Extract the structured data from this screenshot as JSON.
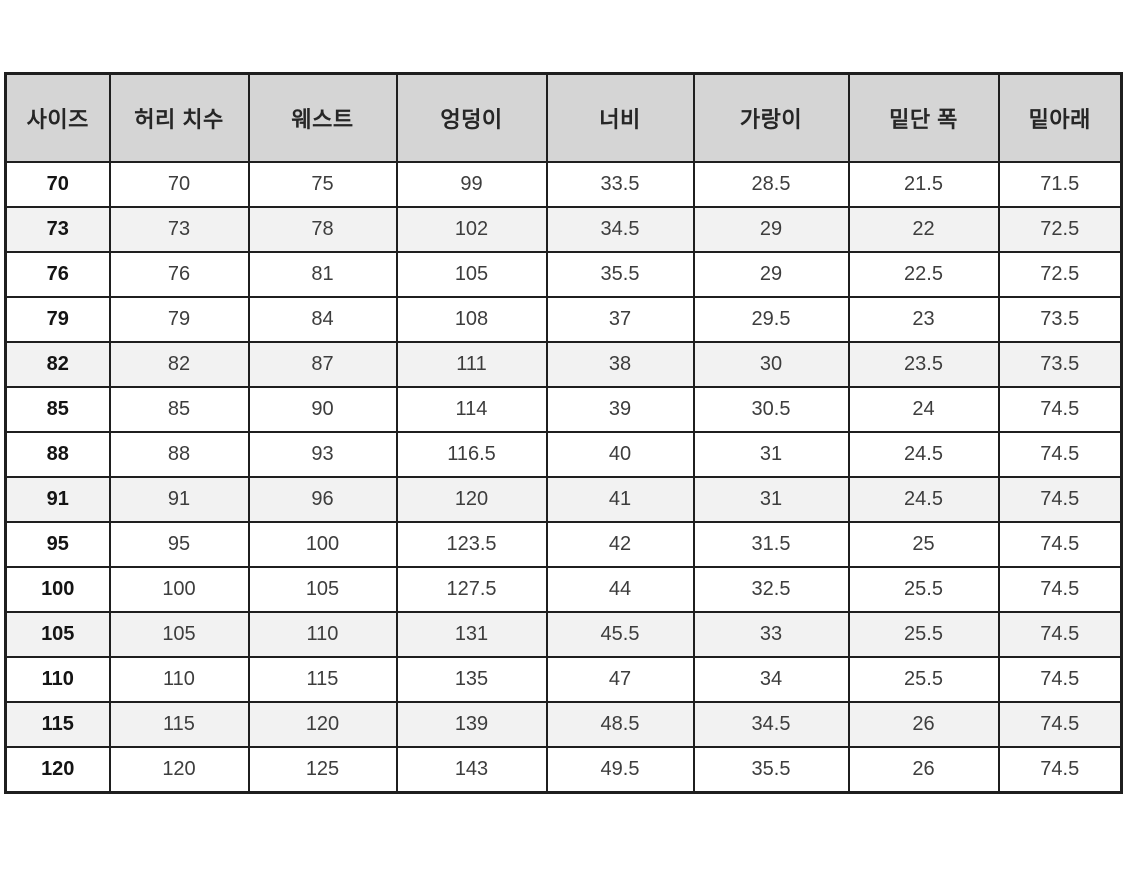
{
  "size_chart": {
    "unit_note": "",
    "colors": {
      "header_bg": "#d5d5d5",
      "row_bg": "#ffffff",
      "row_shaded_bg": "#f2f2f2",
      "border": "#1f1f1f",
      "header_text": "#262626",
      "cell_text": "#3d3d3d",
      "size_col_text": "#141414"
    },
    "headers": [
      "사이즈",
      "허리 치수",
      "웨스트",
      "엉덩이",
      "너비",
      "가랑이",
      "밑단 폭",
      "밑아래"
    ],
    "rows": [
      {
        "shaded": false,
        "cells": [
          "70",
          "70",
          "75",
          "99",
          "33.5",
          "28.5",
          "21.5",
          "71.5"
        ]
      },
      {
        "shaded": true,
        "cells": [
          "73",
          "73",
          "78",
          "102",
          "34.5",
          "29",
          "22",
          "72.5"
        ]
      },
      {
        "shaded": false,
        "cells": [
          "76",
          "76",
          "81",
          "105",
          "35.5",
          "29",
          "22.5",
          "72.5"
        ]
      },
      {
        "shaded": false,
        "cells": [
          "79",
          "79",
          "84",
          "108",
          "37",
          "29.5",
          "23",
          "73.5"
        ]
      },
      {
        "shaded": true,
        "cells": [
          "82",
          "82",
          "87",
          "111",
          "38",
          "30",
          "23.5",
          "73.5"
        ]
      },
      {
        "shaded": false,
        "cells": [
          "85",
          "85",
          "90",
          "114",
          "39",
          "30.5",
          "24",
          "74.5"
        ]
      },
      {
        "shaded": false,
        "cells": [
          "88",
          "88",
          "93",
          "116.5",
          "40",
          "31",
          "24.5",
          "74.5"
        ]
      },
      {
        "shaded": true,
        "cells": [
          "91",
          "91",
          "96",
          "120",
          "41",
          "31",
          "24.5",
          "74.5"
        ]
      },
      {
        "shaded": false,
        "cells": [
          "95",
          "95",
          "100",
          "123.5",
          "42",
          "31.5",
          "25",
          "74.5"
        ]
      },
      {
        "shaded": false,
        "cells": [
          "100",
          "100",
          "105",
          "127.5",
          "44",
          "32.5",
          "25.5",
          "74.5"
        ]
      },
      {
        "shaded": true,
        "cells": [
          "105",
          "105",
          "110",
          "131",
          "45.5",
          "33",
          "25.5",
          "74.5"
        ]
      },
      {
        "shaded": false,
        "cells": [
          "110",
          "110",
          "115",
          "135",
          "47",
          "34",
          "25.5",
          "74.5"
        ]
      },
      {
        "shaded": true,
        "cells": [
          "115",
          "115",
          "120",
          "139",
          "48.5",
          "34.5",
          "26",
          "74.5"
        ]
      },
      {
        "shaded": false,
        "cells": [
          "120",
          "120",
          "125",
          "143",
          "49.5",
          "35.5",
          "26",
          "74.5"
        ]
      }
    ]
  }
}
